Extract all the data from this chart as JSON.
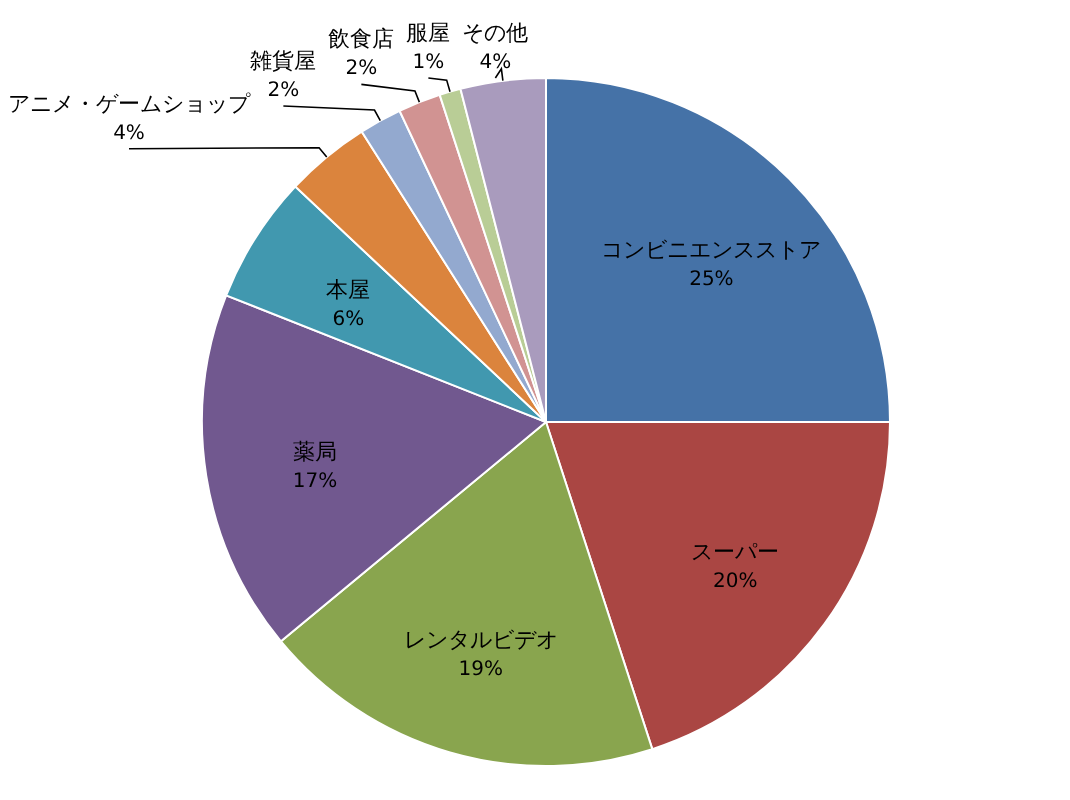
{
  "chart_data": {
    "type": "pie",
    "value_labels": [
      "25%",
      "20%",
      "19%",
      "17%",
      "6%",
      "4%",
      "2%",
      "2%",
      "1%",
      "4%"
    ],
    "categories": [
      "コンビニエンスストア",
      "スーパー",
      "レンタルビデオ",
      "薬局",
      "本屋",
      "アニメ・ゲームショップ",
      "雑貨屋",
      "飲食店",
      "服屋",
      "その他"
    ],
    "values": [
      25,
      20,
      19,
      17,
      6,
      4,
      2,
      2,
      1,
      4
    ],
    "colors": [
      "#4572a7",
      "#aa4643",
      "#89a54e",
      "#71588f",
      "#4198af",
      "#db843d",
      "#93a9cf",
      "#d19392",
      "#b9cd96",
      "#a99bbd"
    ]
  }
}
